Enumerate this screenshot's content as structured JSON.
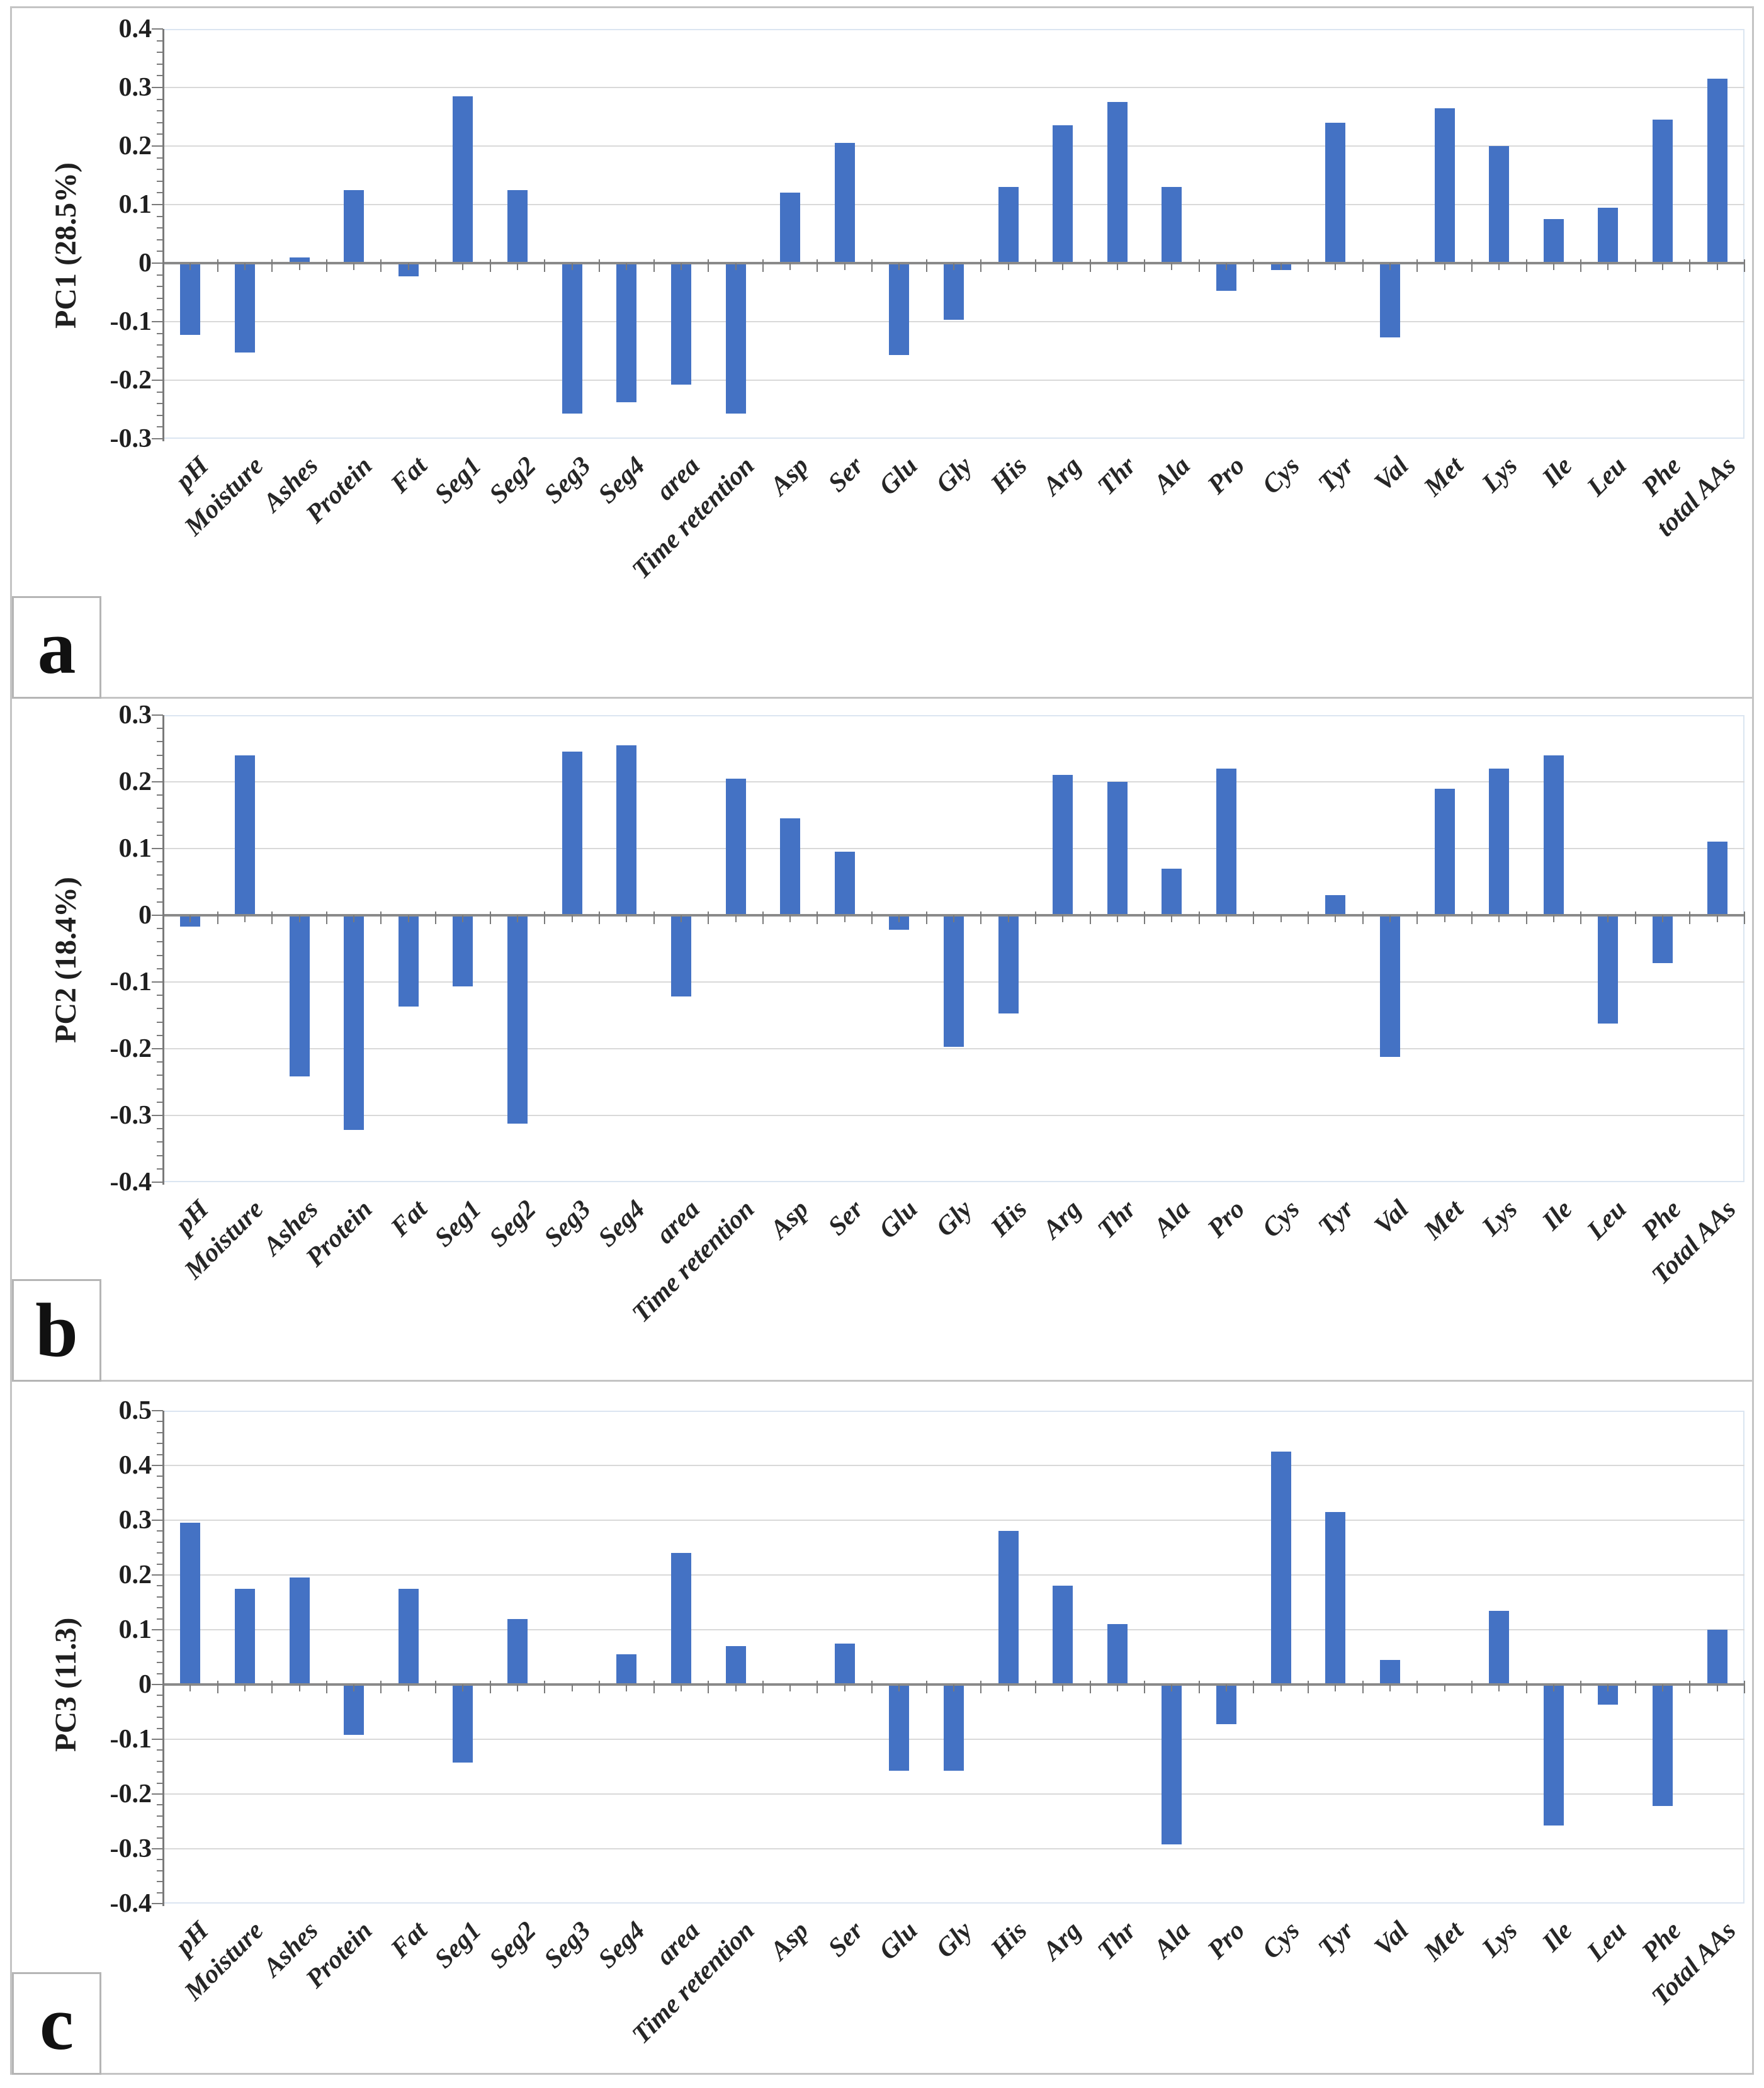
{
  "figure": {
    "panels": [
      "a",
      "b",
      "c"
    ],
    "bar_color": "#4472c4",
    "gridline_color": "#d9d9d9",
    "axis_color": "#7a7a7a",
    "plot_border_color": "#dbe5f1"
  },
  "chart_data": [
    {
      "type": "bar",
      "panel_label": "a",
      "ylabel": "PC1 (28.5%)",
      "xlabel": "",
      "ylim": [
        -0.3,
        0.4
      ],
      "ytick_step": 0.1,
      "grid": true,
      "legend": "none",
      "yticks": [
        "0.4",
        "0.3",
        "0.2",
        "0.1",
        "0",
        "-0.1",
        "-0.2",
        "-0.3"
      ],
      "categories": [
        "pH",
        "Moisture",
        "Ashes",
        "Protein",
        "Fat",
        "Seg1",
        "Seg2",
        "Seg3",
        "Seg4",
        "area",
        "Time retention",
        "Asp",
        "Ser",
        "Glu",
        "Gly",
        "His",
        "Arg",
        "Thr",
        "Ala",
        "Pro",
        "Cys",
        "Tyr",
        "Val",
        "Met",
        "Lys",
        "Ile",
        "Leu",
        "Phe",
        "total AAs"
      ],
      "values": [
        -0.12,
        -0.15,
        0.01,
        0.125,
        -0.02,
        0.285,
        0.125,
        -0.255,
        -0.235,
        -0.205,
        -0.255,
        0.12,
        0.205,
        -0.155,
        -0.095,
        0.13,
        0.235,
        0.275,
        0.13,
        -0.045,
        -0.01,
        0.24,
        -0.125,
        0.265,
        0.2,
        0.075,
        0.095,
        0.245,
        0.315
      ]
    },
    {
      "type": "bar",
      "panel_label": "b",
      "ylabel": "PC2 (18.4%)",
      "xlabel": "",
      "ylim": [
        -0.4,
        0.3
      ],
      "ytick_step": 0.1,
      "grid": true,
      "legend": "none",
      "yticks": [
        "0.3",
        "0.2",
        "0.1",
        "0",
        "-0.1",
        "-0.2",
        "-0.3",
        "-0.4"
      ],
      "categories": [
        "pH",
        "Moisture",
        "Ashes",
        "Protein",
        "Fat",
        "Seg1",
        "Seg2",
        "Seg3",
        "Seg4",
        "area",
        "Time retention",
        "Asp",
        "Ser",
        "Glu",
        "Gly",
        "His",
        "Arg",
        "Thr",
        "Ala",
        "Pro",
        "Cys",
        "Tyr",
        "Val",
        "Met",
        "Lys",
        "Ile",
        "Leu",
        "Phe",
        "Total AAs"
      ],
      "values": [
        -0.015,
        0.24,
        -0.24,
        -0.32,
        -0.135,
        -0.105,
        -0.31,
        0.245,
        0.255,
        -0.12,
        0.205,
        0.145,
        0.095,
        -0.02,
        -0.195,
        -0.145,
        0.21,
        0.2,
        0.07,
        0.22,
        0,
        0.03,
        -0.21,
        0.19,
        0.22,
        0.24,
        -0.16,
        -0.07,
        0.11
      ]
    },
    {
      "type": "bar",
      "panel_label": "c",
      "ylabel": "PC3 (11.3)",
      "xlabel": "",
      "ylim": [
        -0.4,
        0.5
      ],
      "ytick_step": 0.1,
      "grid": true,
      "legend": "none",
      "yticks": [
        "0.5",
        "0.4",
        "0.3",
        "0.2",
        "0.1",
        "0",
        "-0.1",
        "-0.2",
        "-0.3",
        "-0.4"
      ],
      "categories": [
        "pH",
        "Moisture",
        "Ashes",
        "Protein",
        "Fat",
        "Seg1",
        "Seg2",
        "Seg3",
        "Seg4",
        "area",
        "Time retention",
        "Asp",
        "Ser",
        "Glu",
        "Gly",
        "His",
        "Arg",
        "Thr",
        "Ala",
        "Pro",
        "Cys",
        "Tyr",
        "Val",
        "Met",
        "Lys",
        "Ile",
        "Leu",
        "Phe",
        "Total AAs"
      ],
      "values": [
        0.295,
        0.175,
        0.195,
        -0.09,
        0.175,
        -0.14,
        0.12,
        0,
        0.055,
        0.24,
        0.07,
        0,
        0.075,
        -0.155,
        -0.155,
        0.28,
        0.18,
        0.11,
        -0.29,
        -0.07,
        0.425,
        0.315,
        0.045,
        0,
        0.135,
        -0.255,
        -0.035,
        -0.22,
        0.1
      ]
    }
  ]
}
